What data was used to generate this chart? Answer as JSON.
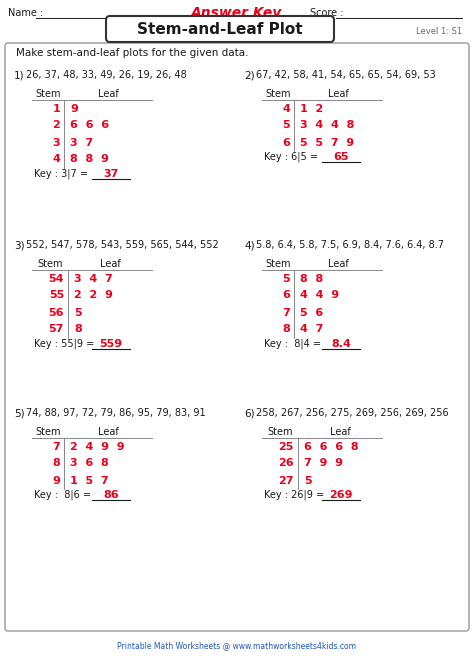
{
  "title": "Stem-and-Leaf Plot",
  "answer_key": "Answer Key",
  "level": "Level 1: S1",
  "instruction": "Make stem-and-leaf plots for the given data.",
  "name_label": "Name :",
  "score_label": "Score :",
  "footer": "Printable Math Worksheets @ www.mathworksheets4kids.com",
  "problems": [
    {
      "num": "1)",
      "data": "26, 37, 48, 33, 49, 26, 19, 26, 48",
      "stems": [
        "1",
        "2",
        "3",
        "4"
      ],
      "leaves": [
        "9",
        "6  6  6",
        "3  7",
        "8  8  9"
      ],
      "key": "Key : 3|7 = ",
      "key_answer": "37"
    },
    {
      "num": "2)",
      "data": "67, 42, 58, 41, 54, 65, 65, 54, 69, 53",
      "stems": [
        "4",
        "5",
        "6"
      ],
      "leaves": [
        "1  2",
        "3  4  4  8",
        "5  5  7  9"
      ],
      "key": "Key : 6|5 = ",
      "key_answer": "65"
    },
    {
      "num": "3)",
      "data": "552, 547, 578, 543, 559, 565, 544, 552",
      "stems": [
        "54",
        "55",
        "56",
        "57"
      ],
      "leaves": [
        "3  4  7",
        "2  2  9",
        "5",
        "8"
      ],
      "key": "Key : 55|9 = ",
      "key_answer": "559"
    },
    {
      "num": "4)",
      "data": "5.8, 6.4, 5.8, 7.5, 6.9, 8.4, 7.6, 6.4, 8.7",
      "stems": [
        "5",
        "6",
        "7",
        "8"
      ],
      "leaves": [
        "8  8",
        "4  4  9",
        "5  6",
        "4  7"
      ],
      "key": "Key :  8|4 = ",
      "key_answer": "8.4"
    },
    {
      "num": "5)",
      "data": "74, 88, 97, 72, 79, 86, 95, 79, 83, 91",
      "stems": [
        "7",
        "8",
        "9"
      ],
      "leaves": [
        "2  4  9  9",
        "3  6  8",
        "1  5  7"
      ],
      "key": "Key :  8|6 = ",
      "key_answer": "86"
    },
    {
      "num": "6)",
      "data": "258, 267, 256, 275, 269, 256, 269, 256",
      "stems": [
        "25",
        "26",
        "27"
      ],
      "leaves": [
        "6  6  6  8",
        "7  9  9",
        "5"
      ],
      "key": "Key : 26|9 = ",
      "key_answer": "269"
    }
  ],
  "red": "#e8001c",
  "black": "#1a1a1a",
  "gray": "#666666",
  "blue_link": "#2255bb",
  "bg_white": "#ffffff",
  "line_color": "#888888",
  "row_colors": [
    "#cce5ff",
    "#ffe0e0",
    "#fff8cc",
    "#e0ffe0"
  ],
  "watermark_color": "#d0e8f8"
}
